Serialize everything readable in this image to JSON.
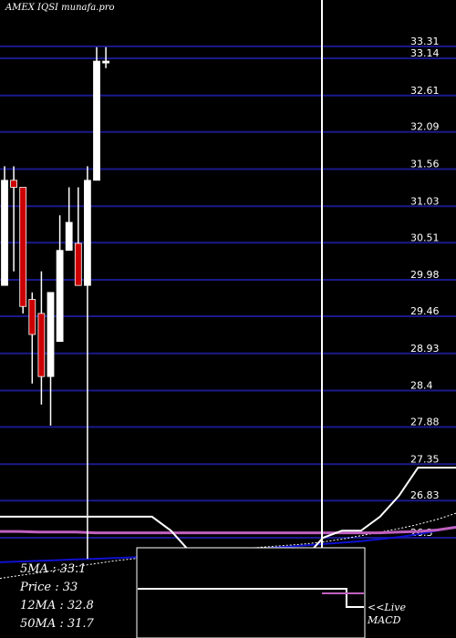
{
  "header": {
    "watermark": "AMEX IQSI munafa.pro"
  },
  "stats": {
    "ma5_label": "5MA : 33.1",
    "price_label": "Price  : 33",
    "ma12_label": "12MA : 32.8",
    "ma50_label": "50MA : 31.7"
  },
  "macd": {
    "line1": "<<Live",
    "line2": "MACD"
  },
  "colors": {
    "background": "#000000",
    "grid": "#1a1a8c",
    "bull": "#ffffff",
    "bear": "#cc0000",
    "ma_white": "#ffffff",
    "ma_magenta": "#c060c0",
    "ma_blue": "#1010d0"
  },
  "chart_data": {
    "type": "candlestick",
    "ylim": [
      25.9,
      33.6
    ],
    "price_levels": [
      "33.31",
      "33.14",
      "32.61",
      "32.09",
      "31.56",
      "31.03",
      "30.51",
      "29.98",
      "29.46",
      "28.93",
      "28.4",
      "27.88",
      "27.35",
      "26.83",
      "26.3"
    ],
    "candles": [
      {
        "open": 29.9,
        "high": 31.6,
        "low": 29.9,
        "close": 31.4
      },
      {
        "open": 31.4,
        "high": 31.6,
        "low": 30.1,
        "close": 31.3
      },
      {
        "open": 31.3,
        "high": 31.3,
        "low": 29.5,
        "close": 29.6
      },
      {
        "open": 29.7,
        "high": 29.8,
        "low": 28.5,
        "close": 29.2
      },
      {
        "open": 29.5,
        "high": 30.1,
        "low": 28.2,
        "close": 28.6
      },
      {
        "open": 28.6,
        "high": 29.8,
        "low": 27.9,
        "close": 29.8
      },
      {
        "open": 29.1,
        "high": 30.9,
        "low": 29.1,
        "close": 30.4
      },
      {
        "open": 30.4,
        "high": 31.3,
        "low": 30.4,
        "close": 30.8
      },
      {
        "open": 30.5,
        "high": 31.3,
        "low": 29.9,
        "close": 29.9
      },
      {
        "open": 29.9,
        "high": 31.6,
        "low": 26.0,
        "close": 31.4
      },
      {
        "open": 31.4,
        "high": 33.3,
        "low": 31.4,
        "close": 33.1
      },
      {
        "open": 33.1,
        "high": 33.3,
        "low": 33.0,
        "close": 33.1
      }
    ],
    "ma_white": [
      26.6,
      26.6,
      26.6,
      26.6,
      26.6,
      26.6,
      26.6,
      26.6,
      26.6,
      26.4,
      26.1,
      26.0,
      25.9,
      25.9,
      25.9,
      25.9,
      26.0,
      26.3,
      26.4,
      26.4,
      26.6,
      26.9,
      27.3,
      27.3,
      27.3
    ],
    "ma_magenta": [
      26.39,
      26.39,
      26.38,
      26.38,
      26.38,
      26.37,
      26.37,
      26.37,
      26.37,
      26.37,
      26.37,
      26.37,
      26.37,
      26.37,
      26.37,
      26.37,
      26.37,
      26.37,
      26.37,
      26.37,
      26.37,
      26.38,
      26.39,
      26.41,
      26.45
    ],
    "ma_blue": [
      25.95,
      25.96,
      25.97,
      25.98,
      25.99,
      26.0,
      26.01,
      26.02,
      26.03,
      26.05,
      26.07,
      26.09,
      26.11,
      26.13,
      26.15,
      26.17,
      26.19,
      26.21,
      26.23,
      26.25,
      26.28,
      26.31,
      26.35,
      26.4,
      26.46
    ],
    "ma_dotted": [
      25.72,
      25.76,
      25.8,
      25.84,
      25.89,
      25.93,
      25.97,
      26.0,
      26.03,
      26.06,
      26.09,
      26.11,
      26.13,
      26.15,
      26.17,
      26.19,
      26.21,
      26.24,
      26.28,
      26.33,
      26.38,
      26.43,
      26.49,
      26.56,
      26.65
    ],
    "macd_values": [
      0.1,
      0.1,
      0.1,
      0.1,
      0.1,
      0.1,
      0.1,
      0.1,
      0.1,
      0.1,
      0.1,
      0.1,
      -0.3,
      -0.3
    ]
  }
}
